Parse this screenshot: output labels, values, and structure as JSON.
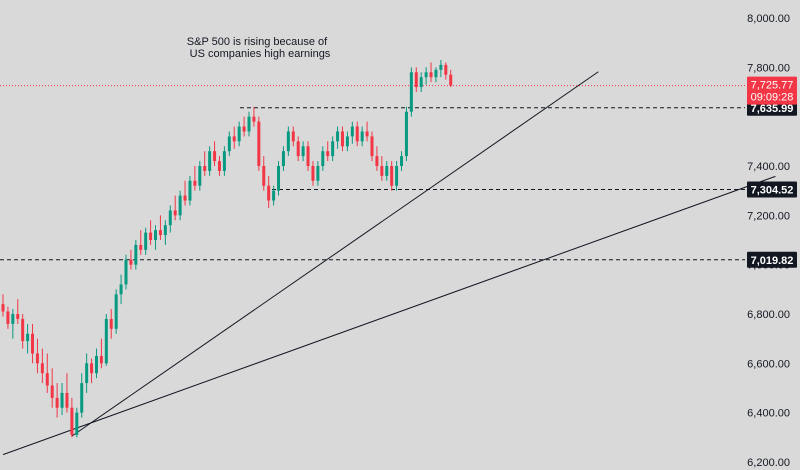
{
  "chart_data": {
    "type": "candlestick",
    "symbol_hint": "",
    "annotation": [
      "S&P 500 is rising because of",
      "US companies high earnings"
    ],
    "ylim": [
      6200,
      8000
    ],
    "y_ticks": [
      6200,
      6400,
      6600,
      6800,
      7000,
      7200,
      7400,
      7800,
      8000
    ],
    "y_tick_labels": [
      "6,200.00",
      "6,400.00",
      "6,600.00",
      "6,800.00",
      "7,000.00",
      "7,200.00",
      "7,400.00",
      "7,800.00",
      "8,000.00"
    ],
    "current_price": {
      "value": 7725.77,
      "label": "7,725.77",
      "countdown": "09:09:28",
      "color": "#f23645"
    },
    "levels": [
      {
        "value": 7635.99,
        "label": "7,635.99"
      },
      {
        "value": 7304.52,
        "label": "7,304.52"
      },
      {
        "value": 7019.82,
        "label": "7,019.82"
      }
    ],
    "trendlines": [
      {
        "from": [
          14,
          6305
        ],
        "to": [
          121,
          7782
        ]
      },
      {
        "from": [
          0,
          6230
        ],
        "to": [
          157,
          7358
        ]
      }
    ],
    "candles": [
      [
        6840,
        6880,
        6790,
        6810
      ],
      [
        6810,
        6830,
        6740,
        6760
      ],
      [
        6760,
        6820,
        6700,
        6800
      ],
      [
        6800,
        6860,
        6760,
        6780
      ],
      [
        6780,
        6800,
        6660,
        6690
      ],
      [
        6690,
        6760,
        6640,
        6720
      ],
      [
        6720,
        6760,
        6600,
        6640
      ],
      [
        6640,
        6700,
        6560,
        6600
      ],
      [
        6600,
        6660,
        6520,
        6560
      ],
      [
        6560,
        6640,
        6480,
        6510
      ],
      [
        6510,
        6580,
        6420,
        6460
      ],
      [
        6460,
        6520,
        6380,
        6420
      ],
      [
        6420,
        6520,
        6390,
        6480
      ],
      [
        6480,
        6560,
        6400,
        6420
      ],
      [
        6420,
        6460,
        6300,
        6310
      ],
      [
        6310,
        6420,
        6300,
        6400
      ],
      [
        6400,
        6560,
        6380,
        6520
      ],
      [
        6520,
        6640,
        6480,
        6600
      ],
      [
        6600,
        6620,
        6520,
        6560
      ],
      [
        6560,
        6660,
        6540,
        6630
      ],
      [
        6630,
        6700,
        6580,
        6600
      ],
      [
        6600,
        6800,
        6590,
        6780
      ],
      [
        6780,
        6820,
        6700,
        6740
      ],
      [
        6740,
        6900,
        6720,
        6880
      ],
      [
        6880,
        6960,
        6840,
        6920
      ],
      [
        6920,
        7040,
        6900,
        7020
      ],
      [
        7020,
        7060,
        6980,
        7000
      ],
      [
        7000,
        7100,
        6980,
        7080
      ],
      [
        7080,
        7140,
        7040,
        7060
      ],
      [
        7060,
        7150,
        7040,
        7130
      ],
      [
        7130,
        7180,
        7080,
        7100
      ],
      [
        7100,
        7160,
        7060,
        7140
      ],
      [
        7140,
        7200,
        7100,
        7120
      ],
      [
        7120,
        7180,
        7080,
        7160
      ],
      [
        7160,
        7240,
        7130,
        7220
      ],
      [
        7220,
        7280,
        7180,
        7200
      ],
      [
        7200,
        7300,
        7180,
        7280
      ],
      [
        7280,
        7340,
        7240,
        7260
      ],
      [
        7260,
        7360,
        7240,
        7340
      ],
      [
        7340,
        7400,
        7300,
        7320
      ],
      [
        7320,
        7420,
        7300,
        7400
      ],
      [
        7400,
        7460,
        7360,
        7380
      ],
      [
        7380,
        7480,
        7360,
        7460
      ],
      [
        7460,
        7500,
        7400,
        7420
      ],
      [
        7420,
        7440,
        7360,
        7380
      ],
      [
        7380,
        7480,
        7360,
        7460
      ],
      [
        7460,
        7540,
        7440,
        7520
      ],
      [
        7520,
        7560,
        7470,
        7500
      ],
      [
        7500,
        7580,
        7480,
        7560
      ],
      [
        7560,
        7600,
        7520,
        7540
      ],
      [
        7540,
        7620,
        7520,
        7600
      ],
      [
        7600,
        7640,
        7560,
        7580
      ],
      [
        7580,
        7600,
        7380,
        7400
      ],
      [
        7400,
        7440,
        7300,
        7320
      ],
      [
        7320,
        7360,
        7230,
        7260
      ],
      [
        7260,
        7320,
        7240,
        7300
      ],
      [
        7300,
        7420,
        7280,
        7400
      ],
      [
        7400,
        7480,
        7380,
        7460
      ],
      [
        7460,
        7560,
        7440,
        7540
      ],
      [
        7540,
        7560,
        7480,
        7500
      ],
      [
        7500,
        7520,
        7420,
        7440
      ],
      [
        7440,
        7500,
        7420,
        7480
      ],
      [
        7480,
        7500,
        7380,
        7400
      ],
      [
        7400,
        7420,
        7320,
        7340
      ],
      [
        7340,
        7420,
        7320,
        7400
      ],
      [
        7400,
        7480,
        7380,
        7460
      ],
      [
        7460,
        7500,
        7420,
        7440
      ],
      [
        7440,
        7520,
        7420,
        7500
      ],
      [
        7500,
        7560,
        7470,
        7540
      ],
      [
        7540,
        7560,
        7460,
        7480
      ],
      [
        7480,
        7540,
        7460,
        7520
      ],
      [
        7520,
        7580,
        7490,
        7560
      ],
      [
        7560,
        7580,
        7480,
        7500
      ],
      [
        7500,
        7560,
        7480,
        7540
      ],
      [
        7540,
        7580,
        7500,
        7520
      ],
      [
        7520,
        7540,
        7420,
        7440
      ],
      [
        7440,
        7480,
        7380,
        7400
      ],
      [
        7400,
        7440,
        7340,
        7360
      ],
      [
        7360,
        7420,
        7340,
        7400
      ],
      [
        7400,
        7420,
        7300,
        7320
      ],
      [
        7320,
        7420,
        7300,
        7400
      ],
      [
        7400,
        7460,
        7380,
        7440
      ],
      [
        7440,
        7640,
        7420,
        7620
      ],
      [
        7620,
        7800,
        7600,
        7780
      ],
      [
        7780,
        7800,
        7700,
        7720
      ],
      [
        7720,
        7780,
        7700,
        7760
      ],
      [
        7760,
        7800,
        7730,
        7780
      ],
      [
        7780,
        7820,
        7740,
        7760
      ],
      [
        7760,
        7800,
        7740,
        7790
      ],
      [
        7790,
        7830,
        7760,
        7810
      ],
      [
        7810,
        7820,
        7750,
        7770
      ],
      [
        7770,
        7790,
        7720,
        7726
      ]
    ]
  }
}
